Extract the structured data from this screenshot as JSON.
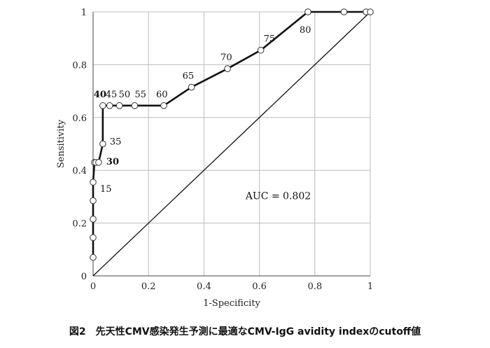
{
  "chart_data": {
    "type": "line",
    "xlabel": "1-Specificity",
    "ylabel": "Sensitivity",
    "xlim": [
      0,
      1
    ],
    "ylim": [
      0,
      1
    ],
    "xticks": [
      "0",
      "0.2",
      "0.4",
      "0.6",
      "0.8",
      "1"
    ],
    "yticks": [
      "0",
      "0.2",
      "0.4",
      "0.6",
      "0.8",
      "1"
    ],
    "grid": true,
    "series": [
      {
        "style": "line-with-open-circles",
        "x": [
          0.0,
          0.0,
          0.0,
          0.0,
          0.0,
          0.005,
          0.01,
          0.02,
          0.035,
          0.035,
          0.06,
          0.095,
          0.15,
          0.255,
          0.355,
          0.485,
          0.605,
          0.775,
          0.905,
          0.985,
          1.0
        ],
        "y": [
          0.07,
          0.145,
          0.215,
          0.285,
          0.355,
          0.43,
          0.43,
          0.43,
          0.5,
          0.645,
          0.645,
          0.645,
          0.645,
          0.645,
          0.715,
          0.785,
          0.855,
          1.0,
          1.0,
          1.0,
          1.0
        ]
      },
      {
        "style": "diagonal-reference",
        "x": [
          0,
          1
        ],
        "y": [
          0,
          1
        ]
      }
    ],
    "point_labels": [
      {
        "text": "15",
        "x": 0.0,
        "y": 0.355,
        "bold": false
      },
      {
        "text": "30",
        "x": 0.02,
        "y": 0.43,
        "bold": true
      },
      {
        "text": "35",
        "x": 0.035,
        "y": 0.5,
        "bold": false
      },
      {
        "text": "40",
        "x": 0.035,
        "y": 0.645,
        "bold": true
      },
      {
        "text": "45",
        "x": 0.06,
        "y": 0.645,
        "bold": false
      },
      {
        "text": "50",
        "x": 0.095,
        "y": 0.645,
        "bold": false
      },
      {
        "text": "55",
        "x": 0.15,
        "y": 0.645,
        "bold": false
      },
      {
        "text": "60",
        "x": 0.255,
        "y": 0.645,
        "bold": false
      },
      {
        "text": "65",
        "x": 0.355,
        "y": 0.715,
        "bold": false
      },
      {
        "text": "70",
        "x": 0.485,
        "y": 0.785,
        "bold": false
      },
      {
        "text": "75",
        "x": 0.605,
        "y": 0.855,
        "bold": false
      },
      {
        "text": "80",
        "x": 0.775,
        "y": 1.0,
        "bold": false
      }
    ],
    "annotations": [
      {
        "text": "AUC = 0.802",
        "x": 0.55,
        "y": 0.29
      }
    ]
  },
  "caption": "図2　先天性CMV感染発生予測に最適なCMV-IgG avidity indexのcutoff値"
}
